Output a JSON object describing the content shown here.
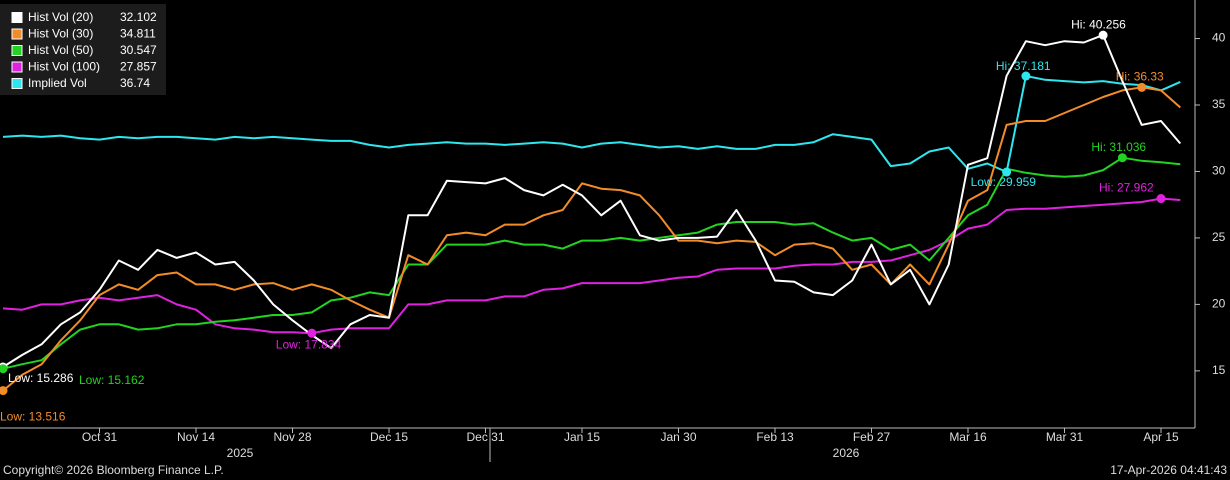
{
  "chart_data": {
    "type": "line",
    "categories": [
      null,
      null,
      null,
      null,
      null,
      "Oct 31",
      null,
      null,
      null,
      null,
      "Nov 14",
      null,
      null,
      null,
      null,
      "Nov 28",
      null,
      null,
      null,
      null,
      "Dec 15",
      null,
      null,
      null,
      null,
      "Dec 31",
      null,
      null,
      null,
      null,
      "Jan 15",
      null,
      null,
      null,
      null,
      "Jan 30",
      null,
      null,
      null,
      null,
      "Feb 13",
      null,
      null,
      null,
      null,
      "Feb 27",
      null,
      null,
      null,
      null,
      "Mar 16",
      null,
      null,
      null,
      null,
      "Mar 31",
      null,
      null,
      null,
      null,
      "Apr 15",
      null
    ],
    "years": [
      "2025",
      "2026"
    ],
    "ylim": [
      10.7,
      42.9
    ],
    "yticks": [
      15,
      20,
      25,
      30,
      35,
      40
    ],
    "legend": "top-left",
    "copyright": "Copyright© 2026 Bloomberg Finance L.P.",
    "timestamp": "17-Apr-2026 04:41:43",
    "series": [
      {
        "name": "Hist Vol (20)",
        "color": "#ffffff",
        "values": [
          15.286,
          16.2,
          17.0,
          18.5,
          19.4,
          21.1,
          23.3,
          22.6,
          24.1,
          23.5,
          23.9,
          23.0,
          23.2,
          21.8,
          20.0,
          18.8,
          17.7,
          16.7,
          18.5,
          19.2,
          19.0,
          26.7,
          26.7,
          29.3,
          29.2,
          29.1,
          29.5,
          28.6,
          28.2,
          29.0,
          28.2,
          26.7,
          27.8,
          25.2,
          24.8,
          25.0,
          25.0,
          25.1,
          27.1,
          24.8,
          21.8,
          21.7,
          20.9,
          20.7,
          21.8,
          24.5,
          21.5,
          22.6,
          20.0,
          23.0,
          30.5,
          31.0,
          37.2,
          39.8,
          39.5,
          39.8,
          39.7,
          40.256,
          36.8,
          33.5,
          33.8,
          32.102
        ],
        "high": {
          "value": 40.256,
          "label": "Hi: 40.256"
        },
        "low": {
          "value": 15.286,
          "label": "Low: 15.286"
        }
      },
      {
        "name": "Hist Vol (30)",
        "color": "#f28c28",
        "values": [
          13.516,
          14.7,
          15.5,
          17.3,
          18.8,
          20.7,
          21.5,
          21.1,
          22.2,
          22.4,
          21.5,
          21.5,
          21.1,
          21.5,
          21.6,
          21.1,
          21.5,
          21.1,
          20.3,
          19.6,
          19.0,
          23.7,
          23.0,
          25.2,
          25.4,
          25.2,
          26.0,
          26.0,
          26.7,
          27.1,
          29.1,
          28.7,
          28.6,
          28.2,
          26.7,
          24.8,
          24.8,
          24.6,
          24.8,
          24.7,
          23.7,
          24.5,
          24.6,
          24.2,
          22.6,
          23.0,
          21.5,
          23.0,
          21.5,
          24.5,
          27.8,
          28.6,
          33.5,
          33.8,
          33.8,
          34.4,
          35.0,
          35.6,
          36.1,
          36.33,
          36.1,
          34.811
        ],
        "high": {
          "value": 36.33,
          "label": "Hi: 36.33"
        },
        "low": {
          "value": 13.516,
          "label": "Low: 13.516"
        }
      },
      {
        "name": "Hist Vol (50)",
        "color": "#22d322",
        "values": [
          15.162,
          15.5,
          15.8,
          17.0,
          18.1,
          18.5,
          18.5,
          18.1,
          18.2,
          18.5,
          18.5,
          18.7,
          18.8,
          19.0,
          19.2,
          19.2,
          19.4,
          20.3,
          20.5,
          20.9,
          20.7,
          23.0,
          23.0,
          24.5,
          24.5,
          24.5,
          24.8,
          24.5,
          24.5,
          24.2,
          24.8,
          24.8,
          25.0,
          24.8,
          25.0,
          25.2,
          25.4,
          26.0,
          26.2,
          26.2,
          26.2,
          26.0,
          26.1,
          25.4,
          24.8,
          25.0,
          24.1,
          24.5,
          23.3,
          25.0,
          26.7,
          27.5,
          30.2,
          29.9,
          29.7,
          29.6,
          29.7,
          30.1,
          31.036,
          30.8,
          30.7,
          30.547
        ],
        "high": {
          "value": 31.036,
          "label": "Hi: 31.036"
        },
        "low": {
          "value": 15.162,
          "label": "Low: 15.162"
        }
      },
      {
        "name": "Hist Vol (100)",
        "color": "#e021e0",
        "values": [
          19.7,
          19.6,
          20.0,
          20.0,
          20.3,
          20.5,
          20.3,
          20.5,
          20.7,
          20.0,
          19.6,
          18.5,
          18.2,
          18.1,
          17.9,
          17.9,
          17.834,
          18.1,
          18.2,
          18.2,
          18.2,
          20.0,
          20.0,
          20.3,
          20.3,
          20.3,
          20.6,
          20.6,
          21.1,
          21.2,
          21.6,
          21.6,
          21.6,
          21.6,
          21.8,
          22.0,
          22.1,
          22.6,
          22.7,
          22.7,
          22.7,
          22.9,
          23.0,
          23.0,
          23.2,
          23.2,
          23.3,
          23.7,
          24.1,
          24.8,
          25.7,
          26.0,
          27.1,
          27.2,
          27.2,
          27.3,
          27.4,
          27.5,
          27.6,
          27.7,
          27.962,
          27.857
        ],
        "high": {
          "value": 27.962,
          "label": "Hi: 27.962"
        },
        "low": {
          "value": 17.834,
          "label": "Low: 17.834"
        }
      },
      {
        "name": "Implied Vol",
        "color": "#2ee6ee",
        "values": [
          32.6,
          32.7,
          32.6,
          32.7,
          32.5,
          32.4,
          32.6,
          32.5,
          32.6,
          32.6,
          32.5,
          32.4,
          32.6,
          32.5,
          32.6,
          32.5,
          32.4,
          32.3,
          32.3,
          32.0,
          31.8,
          32.0,
          32.1,
          32.2,
          32.1,
          32.1,
          32.0,
          32.1,
          32.2,
          32.1,
          31.8,
          32.1,
          32.2,
          32.0,
          31.8,
          31.9,
          31.7,
          31.9,
          31.7,
          31.7,
          32.0,
          32.0,
          32.2,
          32.8,
          32.6,
          32.4,
          30.4,
          30.6,
          31.5,
          31.8,
          30.2,
          30.6,
          29.959,
          37.181,
          36.9,
          36.8,
          36.7,
          36.8,
          36.6,
          36.5,
          36.1,
          36.74
        ],
        "high": {
          "value": 37.181,
          "label": "Hi: 37.181"
        },
        "low": {
          "value": 29.959,
          "label": "Low: 29.959"
        }
      }
    ]
  }
}
